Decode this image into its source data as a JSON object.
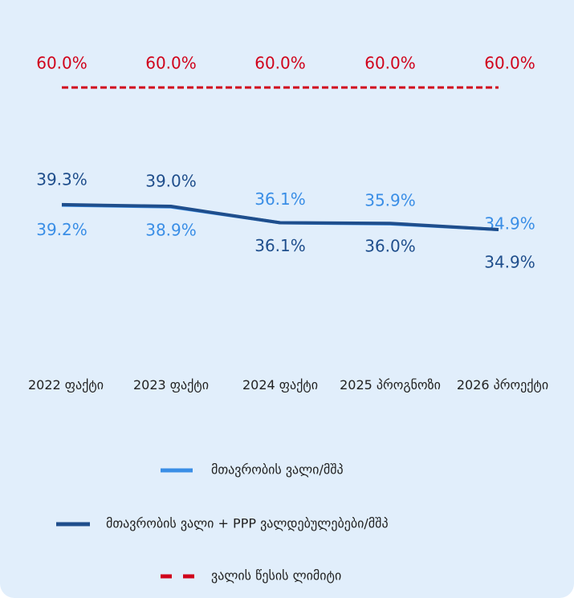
{
  "chart_data": {
    "type": "line",
    "categories": [
      "2022 ფაქტი",
      "2023 ფაქტი",
      "2024 ფაქტი",
      "2025 პროგნოზი",
      "2026 პროექტი"
    ],
    "series": [
      {
        "name": "მთავრობის ვალი/მშპ",
        "color": "#3a8ee6",
        "values": [
          39.2,
          38.9,
          36.1,
          35.9,
          34.9
        ],
        "value_labels": [
          "39.2%",
          "38.9%",
          "36.1%",
          "35.9%",
          "34.9%"
        ]
      },
      {
        "name": "მთავრობის ვალი + PPP ვალდებულებები/მშპ",
        "color": "#1f4e8c",
        "values": [
          39.3,
          39.0,
          36.1,
          36.0,
          34.9
        ],
        "value_labels": [
          "39.3%",
          "39.0%",
          "36.1%",
          "36.0%",
          "34.9%"
        ]
      },
      {
        "name": "ვალის წესის ლიმიტი",
        "color": "#d0021b",
        "dashed": true,
        "values": [
          60.0,
          60.0,
          60.0,
          60.0,
          60.0
        ],
        "value_labels": [
          "60.0%",
          "60.0%",
          "60.0%",
          "60.0%",
          "60.0%"
        ]
      }
    ]
  }
}
